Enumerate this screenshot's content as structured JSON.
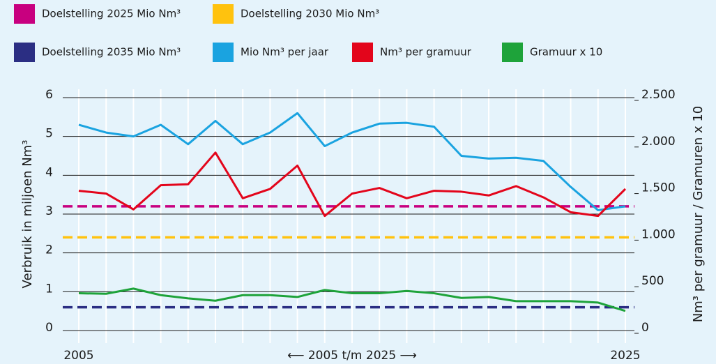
{
  "chart_data": {
    "type": "line",
    "categories": [
      "2005",
      null,
      null,
      null,
      null,
      null,
      null,
      null,
      null,
      null,
      null,
      null,
      null,
      null,
      null,
      null,
      null,
      null,
      null,
      null,
      "2025"
    ],
    "x_label": "⟵ 2005 t/m 2025 ⟶",
    "y_label": "Verbruik in miljoen Nm³",
    "y2_label": "Nm³ per gramuur / Gramuren x 10",
    "ylim": [
      0,
      6
    ],
    "yticks": [
      0,
      1,
      2,
      3,
      4,
      5,
      6
    ],
    "y2lim": [
      0,
      2500
    ],
    "y2ticks": [
      0,
      500,
      {
        "value": 1000,
        "label": "1.000"
      },
      {
        "value": 1500,
        "label": "1.500"
      },
      {
        "value": 2000,
        "label": "2.000"
      },
      {
        "value": 2500,
        "label": "2.500"
      }
    ],
    "grid": true,
    "targets": [
      {
        "name": "Doelstelling 2025 Mio Nm³",
        "color": "#c8007f",
        "value": 3.2
      },
      {
        "name": "Doelstelling 2030 Mio Nm³",
        "color": "#ffc20e",
        "value": 2.4
      },
      {
        "name": "Doelstelling 2035 Mio Nm³",
        "color": "#2b2e83",
        "value": 0.6
      }
    ],
    "series": [
      {
        "name": "Mio Nm³ per jaar",
        "color": "#1aa3e0",
        "values": [
          5.3,
          5.1,
          5.0,
          5.3,
          4.8,
          5.4,
          4.8,
          5.1,
          5.6,
          4.75,
          5.1,
          5.33,
          5.35,
          5.25,
          4.5,
          4.43,
          4.45,
          4.37,
          3.7,
          3.1,
          3.2
        ]
      },
      {
        "name": "Nm³ per gramuur",
        "color": "#e3051b",
        "axis": "y2",
        "values": [
          1500,
          1470,
          1300,
          1560,
          1570,
          1910,
          1420,
          1520,
          1770,
          1230,
          1470,
          1530,
          1420,
          1500,
          1490,
          1450,
          1550,
          1430,
          1270,
          1230,
          1520
        ]
      },
      {
        "name": "Gramuur x 10",
        "color": "#1ea33a",
        "axis": "y2",
        "values": [
          400,
          395,
          450,
          380,
          345,
          320,
          380,
          380,
          360,
          435,
          400,
          400,
          425,
          400,
          350,
          360,
          315,
          315,
          315,
          300,
          210
        ]
      }
    ]
  }
}
